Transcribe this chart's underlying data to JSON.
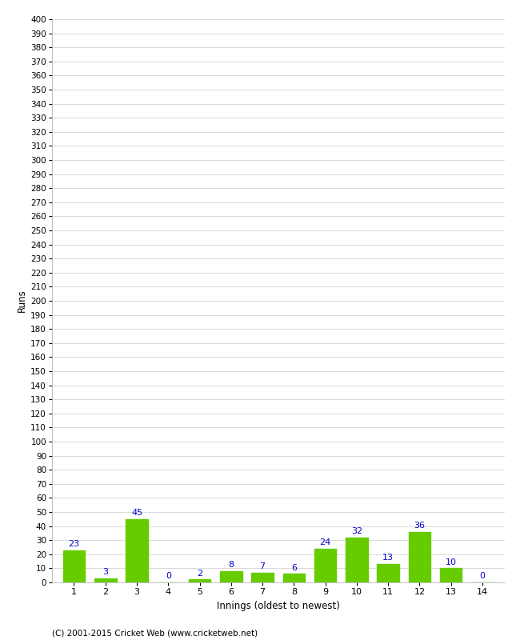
{
  "innings": [
    1,
    2,
    3,
    4,
    5,
    6,
    7,
    8,
    9,
    10,
    11,
    12,
    13,
    14
  ],
  "runs": [
    23,
    3,
    45,
    0,
    2,
    8,
    7,
    6,
    24,
    32,
    13,
    36,
    10,
    0
  ],
  "bar_color": "#66cc00",
  "bar_edge_color": "#66cc00",
  "label_color": "#0000cc",
  "xlabel": "Innings (oldest to newest)",
  "ylabel": "Runs",
  "ylim_min": 0,
  "ylim_max": 400,
  "ytick_step": 10,
  "background_color": "#ffffff",
  "grid_color": "#cccccc",
  "footer": "(C) 2001-2015 Cricket Web (www.cricketweb.net)"
}
